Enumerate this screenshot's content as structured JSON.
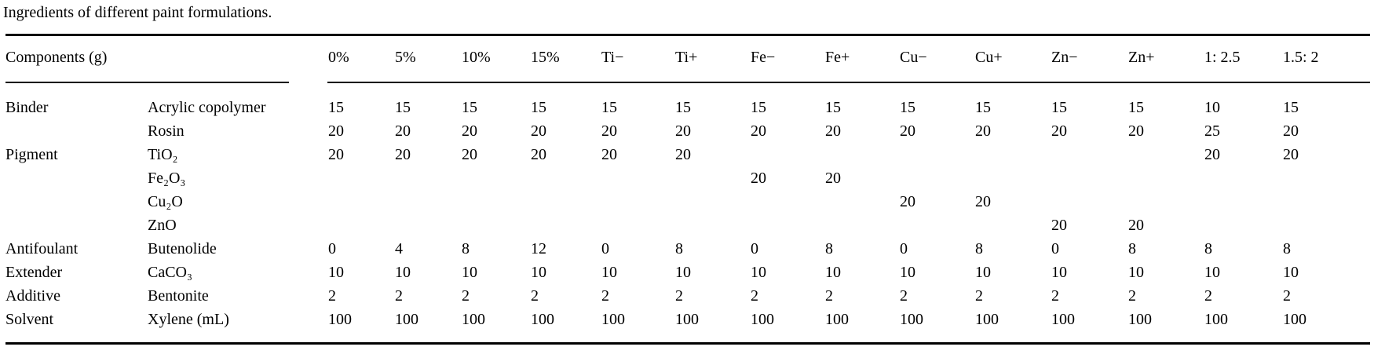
{
  "caption": "Ingredients of different paint formulations.",
  "table": {
    "components_header": "Components (g)",
    "column_headers": [
      "0%",
      "5%",
      "10%",
      "15%",
      "Ti−",
      "Ti+",
      "Fe−",
      "Fe+",
      "Cu−",
      "Cu+",
      "Zn−",
      "Zn+",
      "1: 2.5",
      "1.5: 2"
    ],
    "rows": [
      {
        "category": "Binder",
        "component": "Acrylic copolymer",
        "values": [
          "15",
          "15",
          "15",
          "15",
          "15",
          "15",
          "15",
          "15",
          "15",
          "15",
          "15",
          "15",
          "10",
          "15"
        ]
      },
      {
        "category": "",
        "component": "Rosin",
        "values": [
          "20",
          "20",
          "20",
          "20",
          "20",
          "20",
          "20",
          "20",
          "20",
          "20",
          "20",
          "20",
          "25",
          "20"
        ]
      },
      {
        "category": "Pigment",
        "component": "TiO₂",
        "values": [
          "20",
          "20",
          "20",
          "20",
          "20",
          "20",
          "",
          "",
          "",
          "",
          "",
          "",
          "20",
          "20"
        ]
      },
      {
        "category": "",
        "component": "Fe₂O₃",
        "values": [
          "",
          "",
          "",
          "",
          "",
          "",
          "20",
          "20",
          "",
          "",
          "",
          "",
          "",
          ""
        ]
      },
      {
        "category": "",
        "component": "Cu₂O",
        "values": [
          "",
          "",
          "",
          "",
          "",
          "",
          "",
          "",
          "20",
          "20",
          "",
          "",
          "",
          ""
        ]
      },
      {
        "category": "",
        "component": "ZnO",
        "values": [
          "",
          "",
          "",
          "",
          "",
          "",
          "",
          "",
          "",
          "",
          "20",
          "20",
          "",
          ""
        ]
      },
      {
        "category": "Antifoulant",
        "component": "Butenolide",
        "values": [
          "0",
          "4",
          "8",
          "12",
          "0",
          "8",
          "0",
          "8",
          "0",
          "8",
          "0",
          "8",
          "8",
          "8"
        ]
      },
      {
        "category": "Extender",
        "component": "CaCO₃",
        "values": [
          "10",
          "10",
          "10",
          "10",
          "10",
          "10",
          "10",
          "10",
          "10",
          "10",
          "10",
          "10",
          "10",
          "10"
        ]
      },
      {
        "category": "Additive",
        "component": "Bentonite",
        "values": [
          "2",
          "2",
          "2",
          "2",
          "2",
          "2",
          "2",
          "2",
          "2",
          "2",
          "2",
          "2",
          "2",
          "2"
        ]
      },
      {
        "category": "Solvent",
        "component": "Xylene (mL)",
        "values": [
          "100",
          "100",
          "100",
          "100",
          "100",
          "100",
          "100",
          "100",
          "100",
          "100",
          "100",
          "100",
          "100",
          "100"
        ]
      }
    ]
  }
}
